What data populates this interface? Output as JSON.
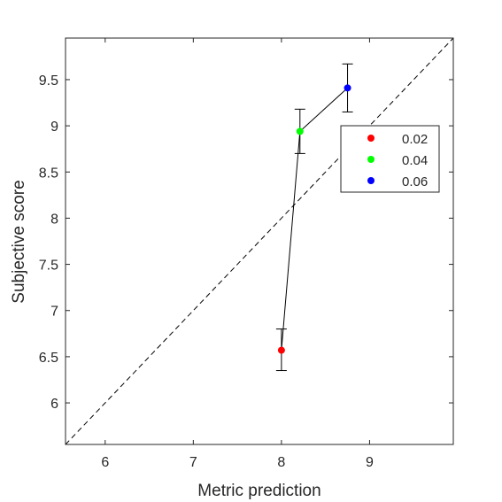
{
  "chart_data": {
    "type": "scatter",
    "xlabel": "Metric prediction",
    "ylabel": "Subjective score",
    "xlim": [
      5.55,
      9.95
    ],
    "ylim": [
      5.55,
      9.95
    ],
    "xticks": [
      "6",
      "7",
      "8",
      "9"
    ],
    "yticks": [
      "6",
      "6.5",
      "7",
      "7.5",
      "8",
      "8.5",
      "9",
      "9.5"
    ],
    "grid": false,
    "legend_position": "top-right",
    "reference_line": "y = x (dashed)",
    "series": [
      {
        "name": "0.02",
        "color": "#ff0000",
        "x": 8.0,
        "y": 6.57,
        "err_low": 6.35,
        "err_high": 6.8
      },
      {
        "name": "0.04",
        "color": "#00ff00",
        "x": 8.21,
        "y": 8.94,
        "err_low": 8.7,
        "err_high": 9.18
      },
      {
        "name": "0.06",
        "color": "#0000ff",
        "x": 8.75,
        "y": 9.41,
        "err_low": 9.15,
        "err_high": 9.67
      }
    ]
  }
}
